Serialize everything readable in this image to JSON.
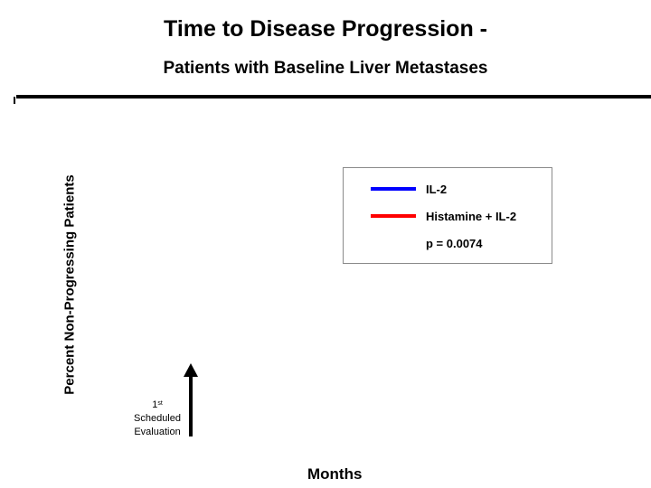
{
  "chart_data": {
    "type": "line",
    "title": "Time to Disease Progression -",
    "subtitle": "Patients with Baseline Liver Metastases",
    "xlabel": "Months",
    "ylabel": "Percent Non-Progressing Patients",
    "series": [
      {
        "name": "IL-2",
        "color": "#0000ff",
        "x": [],
        "y": []
      },
      {
        "name": "Histamine + IL-2",
        "color": "#ff0000",
        "x": [],
        "y": []
      }
    ],
    "annotations": [
      {
        "text": "p = 0.0074"
      },
      {
        "text_main": "1",
        "text_sup": "st",
        "text_rest1": "Scheduled",
        "text_rest2": "Evaluation"
      }
    ],
    "legend_position": "top-right"
  }
}
